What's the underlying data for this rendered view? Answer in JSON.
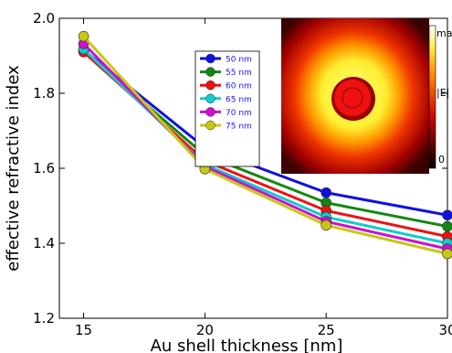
{
  "chart_data": {
    "type": "line",
    "title": "",
    "xlabel": "Au shell thickness [nm]",
    "ylabel": "effective refractive index",
    "x": [
      15,
      20,
      25,
      30
    ],
    "xlim": [
      14,
      30
    ],
    "ylim": [
      1.2,
      2.0
    ],
    "xticks": [
      "15",
      "20",
      "25",
      "30"
    ],
    "yticks": [
      "1.2",
      "1.4",
      "1.6",
      "1.8",
      "2.0"
    ],
    "legend_position": "top-center",
    "grid": false,
    "series": [
      {
        "name": "50 nm",
        "color": "#1010e0",
        "values": [
          1.915,
          1.655,
          1.535,
          1.475
        ]
      },
      {
        "name": "55 nm",
        "color": "#118811",
        "values": [
          1.912,
          1.635,
          1.508,
          1.445
        ]
      },
      {
        "name": "60 nm",
        "color": "#ee1111",
        "values": [
          1.91,
          1.62,
          1.487,
          1.418
        ]
      },
      {
        "name": "65 nm",
        "color": "#11cccc",
        "values": [
          1.918,
          1.61,
          1.47,
          1.4
        ]
      },
      {
        "name": "70 nm",
        "color": "#cc11cc",
        "values": [
          1.932,
          1.605,
          1.458,
          1.385
        ]
      },
      {
        "name": "75 nm",
        "color": "#c8c811",
        "values": [
          1.952,
          1.598,
          1.448,
          1.372
        ]
      }
    ],
    "inset": {
      "description": "field map",
      "colorbar_labels": {
        "max": "max",
        "mid": "|E|",
        "min": "0"
      }
    }
  }
}
